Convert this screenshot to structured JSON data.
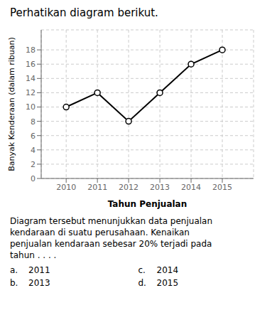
{
  "chart_data": {
    "type": "line",
    "title": "Perhatikan diagram berikut.",
    "subtitle": [
      "Diagram tersebut menunjukkan data penjualan",
      "kendaraan di suatu perusahaan. Kenaikan",
      "penjualan kendaraan sebesar 20% terjadi pada",
      "tahun . . . ."
    ],
    "x_label": "Tahun Penjualan",
    "y_label": "Banyak Kenderaan (dalam ribuan)",
    "x": [
      2010,
      2011,
      2012,
      2013,
      2014,
      2015
    ],
    "values": [
      10,
      12,
      8,
      12,
      16,
      18
    ],
    "xlim": [
      2009.2,
      2016.0
    ],
    "xticks": [
      2010,
      2011,
      2012,
      2013,
      2014,
      2015
    ],
    "ylim": [
      0,
      20.8
    ],
    "yticks": [
      0,
      2,
      4,
      6,
      8,
      10,
      12,
      14,
      16,
      18
    ],
    "color": "#000000",
    "marker": "circle",
    "grid": true,
    "annotations": [
      {
        "label": "a.",
        "text": "2011"
      },
      {
        "label": "b.",
        "text": "2013"
      },
      {
        "label": "c.",
        "text": "2014"
      },
      {
        "label": "d.",
        "text": "2015"
      }
    ]
  }
}
